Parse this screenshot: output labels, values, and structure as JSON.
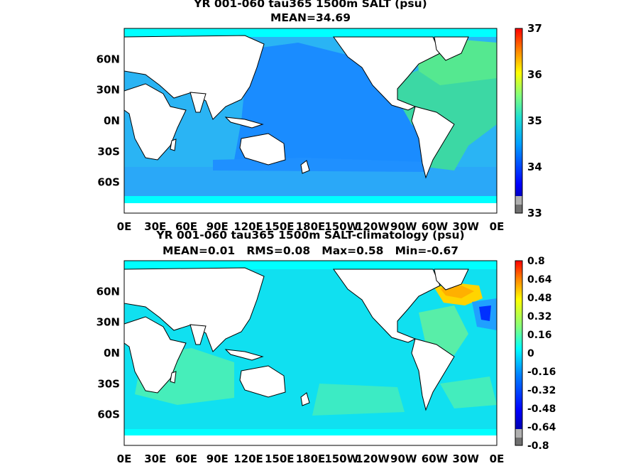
{
  "chart_data": [
    {
      "type": "heatmap",
      "title": "YR 001-060 tau365 1500m SALT (psu)",
      "subtitle": "MEAN=34.69",
      "xticks": [
        "0E",
        "30E",
        "60E",
        "90E",
        "120E",
        "150E",
        "180E",
        "150W",
        "120W",
        "90W",
        "60W",
        "30W",
        "0E"
      ],
      "yticks": [
        "60N",
        "30N",
        "0N",
        "30S",
        "60S"
      ],
      "colorbar_ticks": [
        "37",
        "36",
        "35",
        "34",
        "33"
      ],
      "colorbar_range": [
        33,
        37
      ],
      "colors": {
        "land": "#ffffff",
        "ice": "#00ffff",
        "pacific": "#1a8cff",
        "south_band": "#2aa8f8",
        "indian": "#2ab4f4",
        "atlantic": "#3cd8a4",
        "north_atlantic": "#55e890",
        "frame": "#000000"
      },
      "regions": [
        {
          "name": "Pacific",
          "value": 34.6
        },
        {
          "name": "Indian",
          "value": 34.7
        },
        {
          "name": "Southern",
          "value": 34.7
        },
        {
          "name": "Atlantic",
          "value": 34.95
        },
        {
          "name": "North Atlantic",
          "value": 35.0
        }
      ]
    },
    {
      "type": "heatmap",
      "title": "YR 001-060 tau365 1500m SALT-climatology (psu)",
      "subtitle": "MEAN=0.01   RMS=0.08   Max=0.58   Min=-0.67",
      "xticks": [
        "0E",
        "30E",
        "60E",
        "90E",
        "120E",
        "150E",
        "180E",
        "150W",
        "120W",
        "90W",
        "60W",
        "30W",
        "0E"
      ],
      "yticks": [
        "60N",
        "30N",
        "0N",
        "30S",
        "60S"
      ],
      "colorbar_ticks": [
        "0.8",
        "0.64",
        "0.48",
        "0.32",
        "0.16",
        "0",
        "-0.16",
        "-0.32",
        "-0.48",
        "-0.64",
        "-0.8"
      ],
      "colorbar_range": [
        -0.8,
        0.8
      ],
      "colors": {
        "land": "#ffffff",
        "ice": "#00ffff",
        "background": "#10e0f0",
        "positive_patch": "#50f0b0",
        "labrador": "#ffd400",
        "labrador_edge": "#ffb000",
        "deep_negative": "#0030ff",
        "negative": "#20a0ff",
        "frame": "#000000"
      },
      "regions": [
        {
          "name": "Global background",
          "value": 0.0
        },
        {
          "name": "Labrador Sea",
          "value": 0.58
        },
        {
          "name": "Mid-Atlantic",
          "value": -0.67
        },
        {
          "name": "Southern Ocean patches",
          "value": 0.1
        }
      ]
    }
  ]
}
